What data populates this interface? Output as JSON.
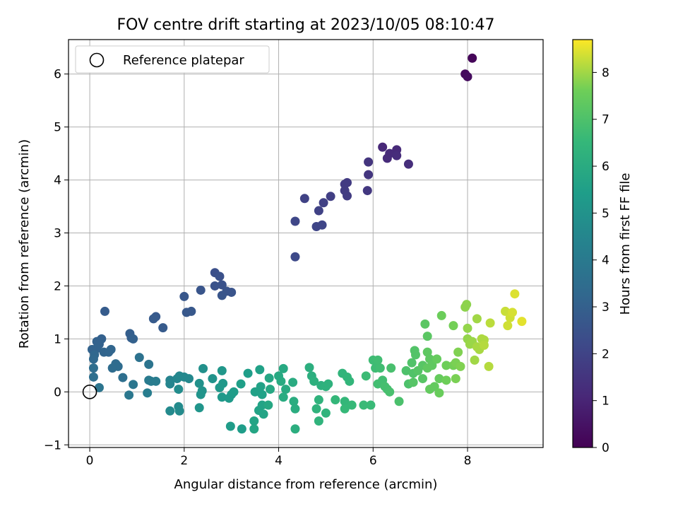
{
  "chart_data": {
    "type": "scatter",
    "title": "FOV centre drift starting at 2023/10/05 08:10:47",
    "xlabel": "Angular distance from reference (arcmin)",
    "ylabel": "Rotation from reference (arcmin)",
    "xlim": [
      -0.45,
      9.6
    ],
    "ylim": [
      -1.05,
      6.65
    ],
    "xticks": [
      0,
      2,
      4,
      6,
      8
    ],
    "yticks": [
      -1,
      0,
      1,
      2,
      3,
      4,
      5,
      6
    ],
    "grid": true,
    "legend": {
      "placement": "top-left",
      "entries": [
        "Reference platepar"
      ]
    },
    "reference_point": {
      "x": 0,
      "y": 0
    },
    "colorbar": {
      "label": "Hours from first FF file",
      "min": 0,
      "max": 8.7,
      "ticks": [
        0,
        1,
        2,
        3,
        4,
        5,
        6,
        7,
        8
      ],
      "colormap": "viridis"
    },
    "series": [
      {
        "points": [
          {
            "x": 8.1,
            "y": 6.3,
            "c": 0.15
          },
          {
            "x": 7.95,
            "y": 6.0,
            "c": 0.25
          },
          {
            "x": 8.0,
            "y": 5.95,
            "c": 0.3
          },
          {
            "x": 6.2,
            "y": 4.62,
            "c": 1.1
          },
          {
            "x": 6.5,
            "y": 4.57,
            "c": 1.15
          },
          {
            "x": 6.35,
            "y": 4.5,
            "c": 1.2
          },
          {
            "x": 6.3,
            "y": 4.41,
            "c": 1.2
          },
          {
            "x": 6.5,
            "y": 4.46,
            "c": 1.25
          },
          {
            "x": 6.75,
            "y": 4.3,
            "c": 1.3
          },
          {
            "x": 5.9,
            "y": 4.34,
            "c": 1.5
          },
          {
            "x": 5.9,
            "y": 4.1,
            "c": 1.55
          },
          {
            "x": 5.88,
            "y": 3.8,
            "c": 1.6
          },
          {
            "x": 5.45,
            "y": 3.95,
            "c": 1.7
          },
          {
            "x": 5.4,
            "y": 3.92,
            "c": 1.72
          },
          {
            "x": 5.4,
            "y": 3.8,
            "c": 1.75
          },
          {
            "x": 5.45,
            "y": 3.7,
            "c": 1.75
          },
          {
            "x": 5.1,
            "y": 3.69,
            "c": 1.85
          },
          {
            "x": 4.95,
            "y": 3.57,
            "c": 1.9
          },
          {
            "x": 4.85,
            "y": 3.42,
            "c": 1.95
          },
          {
            "x": 4.55,
            "y": 3.65,
            "c": 1.95
          },
          {
            "x": 4.8,
            "y": 3.12,
            "c": 2.05
          },
          {
            "x": 4.92,
            "y": 3.15,
            "c": 2.05
          },
          {
            "x": 4.35,
            "y": 3.22,
            "c": 2.1
          },
          {
            "x": 4.35,
            "y": 2.55,
            "c": 2.2
          },
          {
            "x": 2.65,
            "y": 2.25,
            "c": 2.4
          },
          {
            "x": 2.75,
            "y": 2.18,
            "c": 2.45
          },
          {
            "x": 2.8,
            "y": 2.02,
            "c": 2.5
          },
          {
            "x": 2.65,
            "y": 2.0,
            "c": 2.5
          },
          {
            "x": 2.9,
            "y": 1.9,
            "c": 2.55
          },
          {
            "x": 3.0,
            "y": 1.88,
            "c": 2.55
          },
          {
            "x": 2.8,
            "y": 1.82,
            "c": 2.6
          },
          {
            "x": 2.35,
            "y": 1.92,
            "c": 2.6
          },
          {
            "x": 2.0,
            "y": 1.8,
            "c": 2.65
          },
          {
            "x": 2.05,
            "y": 1.5,
            "c": 2.7
          },
          {
            "x": 2.15,
            "y": 1.52,
            "c": 2.7
          },
          {
            "x": 1.4,
            "y": 1.42,
            "c": 2.75
          },
          {
            "x": 1.35,
            "y": 1.38,
            "c": 2.8
          },
          {
            "x": 1.55,
            "y": 1.21,
            "c": 2.8
          },
          {
            "x": 0.32,
            "y": 1.52,
            "c": 2.85
          },
          {
            "x": 0.85,
            "y": 1.1,
            "c": 2.95
          },
          {
            "x": 0.88,
            "y": 1.02,
            "c": 2.95
          },
          {
            "x": 0.92,
            "y": 1.0,
            "c": 3.0
          },
          {
            "x": 0.25,
            "y": 1.0,
            "c": 3.0
          },
          {
            "x": 0.15,
            "y": 0.95,
            "c": 3.05
          },
          {
            "x": 0.2,
            "y": 0.9,
            "c": 3.05
          },
          {
            "x": 0.05,
            "y": 0.8,
            "c": 3.1
          },
          {
            "x": 0.15,
            "y": 0.82,
            "c": 3.1
          },
          {
            "x": 0.3,
            "y": 0.75,
            "c": 3.15
          },
          {
            "x": 0.45,
            "y": 0.8,
            "c": 3.2
          },
          {
            "x": 0.4,
            "y": 0.75,
            "c": 3.2
          },
          {
            "x": 0.1,
            "y": 0.7,
            "c": 3.25
          },
          {
            "x": 0.08,
            "y": 0.62,
            "c": 3.3
          },
          {
            "x": 0.55,
            "y": 0.53,
            "c": 3.4
          },
          {
            "x": 0.6,
            "y": 0.48,
            "c": 3.45
          },
          {
            "x": 0.48,
            "y": 0.45,
            "c": 3.45
          },
          {
            "x": 0.08,
            "y": 0.45,
            "c": 3.5
          },
          {
            "x": 0.7,
            "y": 0.27,
            "c": 3.55
          },
          {
            "x": 0.08,
            "y": 0.28,
            "c": 3.55
          },
          {
            "x": 1.05,
            "y": 0.65,
            "c": 3.7
          },
          {
            "x": 1.25,
            "y": 0.52,
            "c": 3.75
          },
          {
            "x": 0.2,
            "y": 0.08,
            "c": 3.8
          },
          {
            "x": 0.92,
            "y": 0.14,
            "c": 3.85
          },
          {
            "x": 0.83,
            "y": -0.06,
            "c": 3.9
          },
          {
            "x": 1.25,
            "y": 0.22,
            "c": 4.0
          },
          {
            "x": 1.3,
            "y": 0.2,
            "c": 4.05
          },
          {
            "x": 1.4,
            "y": 0.2,
            "c": 4.1
          },
          {
            "x": 1.22,
            "y": -0.02,
            "c": 4.15
          },
          {
            "x": 1.7,
            "y": 0.22,
            "c": 4.4
          },
          {
            "x": 1.7,
            "y": 0.15,
            "c": 4.45
          },
          {
            "x": 1.85,
            "y": 0.25,
            "c": 4.5
          },
          {
            "x": 1.9,
            "y": 0.3,
            "c": 4.55
          },
          {
            "x": 2.0,
            "y": 0.28,
            "c": 4.6
          },
          {
            "x": 2.1,
            "y": 0.25,
            "c": 4.6
          },
          {
            "x": 1.7,
            "y": -0.36,
            "c": 4.65
          },
          {
            "x": 1.88,
            "y": -0.28,
            "c": 4.7
          },
          {
            "x": 1.9,
            "y": -0.36,
            "c": 4.7
          },
          {
            "x": 1.88,
            "y": 0.05,
            "c": 4.75
          },
          {
            "x": 2.4,
            "y": 0.44,
            "c": 4.9
          },
          {
            "x": 2.32,
            "y": 0.16,
            "c": 4.95
          },
          {
            "x": 2.6,
            "y": 0.25,
            "c": 5.0
          },
          {
            "x": 2.38,
            "y": 0.02,
            "c": 5.0
          },
          {
            "x": 2.35,
            "y": -0.05,
            "c": 5.05
          },
          {
            "x": 2.32,
            "y": -0.3,
            "c": 5.1
          },
          {
            "x": 2.8,
            "y": 0.4,
            "c": 5.15
          },
          {
            "x": 2.82,
            "y": 0.16,
            "c": 5.2
          },
          {
            "x": 2.75,
            "y": 0.08,
            "c": 5.2
          },
          {
            "x": 2.8,
            "y": -0.1,
            "c": 5.25
          },
          {
            "x": 2.95,
            "y": -0.12,
            "c": 5.3
          },
          {
            "x": 3.0,
            "y": -0.05,
            "c": 5.3
          },
          {
            "x": 3.05,
            "y": 0.0,
            "c": 5.35
          },
          {
            "x": 2.98,
            "y": -0.65,
            "c": 5.35
          },
          {
            "x": 3.22,
            "y": -0.7,
            "c": 5.4
          },
          {
            "x": 3.35,
            "y": 0.35,
            "c": 5.45
          },
          {
            "x": 3.2,
            "y": 0.15,
            "c": 5.5
          },
          {
            "x": 3.5,
            "y": 0.0,
            "c": 5.55
          },
          {
            "x": 3.6,
            "y": 0.42,
            "c": 5.55
          },
          {
            "x": 3.62,
            "y": 0.1,
            "c": 5.6
          },
          {
            "x": 3.65,
            "y": -0.05,
            "c": 5.6
          },
          {
            "x": 3.58,
            "y": -0.35,
            "c": 5.65
          },
          {
            "x": 3.65,
            "y": -0.25,
            "c": 5.65
          },
          {
            "x": 3.68,
            "y": -0.42,
            "c": 5.7
          },
          {
            "x": 3.48,
            "y": -0.55,
            "c": 5.7
          },
          {
            "x": 3.48,
            "y": -0.7,
            "c": 5.75
          },
          {
            "x": 3.8,
            "y": 0.26,
            "c": 5.8
          },
          {
            "x": 3.82,
            "y": 0.05,
            "c": 5.85
          },
          {
            "x": 3.78,
            "y": -0.25,
            "c": 5.85
          },
          {
            "x": 4.0,
            "y": 0.3,
            "c": 5.9
          },
          {
            "x": 4.1,
            "y": 0.44,
            "c": 5.9
          },
          {
            "x": 4.05,
            "y": 0.2,
            "c": 5.95
          },
          {
            "x": 4.15,
            "y": 0.05,
            "c": 5.95
          },
          {
            "x": 4.1,
            "y": -0.1,
            "c": 6.0
          },
          {
            "x": 4.3,
            "y": 0.18,
            "c": 6.0
          },
          {
            "x": 4.32,
            "y": -0.18,
            "c": 6.05
          },
          {
            "x": 4.35,
            "y": -0.32,
            "c": 6.05
          },
          {
            "x": 4.35,
            "y": -0.7,
            "c": 6.1
          },
          {
            "x": 4.65,
            "y": 0.46,
            "c": 6.15
          },
          {
            "x": 4.7,
            "y": 0.3,
            "c": 6.15
          },
          {
            "x": 4.75,
            "y": 0.2,
            "c": 6.2
          },
          {
            "x": 4.9,
            "y": 0.12,
            "c": 6.2
          },
          {
            "x": 5.0,
            "y": 0.1,
            "c": 6.25
          },
          {
            "x": 5.05,
            "y": 0.15,
            "c": 6.25
          },
          {
            "x": 4.85,
            "y": -0.15,
            "c": 6.3
          },
          {
            "x": 4.8,
            "y": -0.32,
            "c": 6.3
          },
          {
            "x": 4.85,
            "y": -0.55,
            "c": 6.35
          },
          {
            "x": 5.0,
            "y": -0.4,
            "c": 6.35
          },
          {
            "x": 5.35,
            "y": 0.35,
            "c": 6.4
          },
          {
            "x": 5.45,
            "y": 0.28,
            "c": 6.45
          },
          {
            "x": 5.5,
            "y": 0.2,
            "c": 6.45
          },
          {
            "x": 5.2,
            "y": -0.15,
            "c": 6.5
          },
          {
            "x": 5.4,
            "y": -0.18,
            "c": 6.5
          },
          {
            "x": 5.4,
            "y": -0.32,
            "c": 6.55
          },
          {
            "x": 5.55,
            "y": -0.25,
            "c": 6.55
          },
          {
            "x": 5.8,
            "y": -0.25,
            "c": 6.6
          },
          {
            "x": 5.95,
            "y": -0.25,
            "c": 6.6
          },
          {
            "x": 5.85,
            "y": 0.3,
            "c": 6.65
          },
          {
            "x": 6.0,
            "y": 0.6,
            "c": 6.7
          },
          {
            "x": 6.05,
            "y": 0.45,
            "c": 6.7
          },
          {
            "x": 6.1,
            "y": 0.6,
            "c": 6.75
          },
          {
            "x": 6.15,
            "y": 0.45,
            "c": 6.75
          },
          {
            "x": 6.1,
            "y": 0.15,
            "c": 6.8
          },
          {
            "x": 6.2,
            "y": 0.22,
            "c": 6.8
          },
          {
            "x": 6.25,
            "y": 0.1,
            "c": 6.85
          },
          {
            "x": 6.3,
            "y": 0.05,
            "c": 6.85
          },
          {
            "x": 6.35,
            "y": 0.0,
            "c": 6.9
          },
          {
            "x": 6.38,
            "y": 0.45,
            "c": 6.9
          },
          {
            "x": 6.55,
            "y": -0.18,
            "c": 6.95
          },
          {
            "x": 6.7,
            "y": 0.4,
            "c": 7.0
          },
          {
            "x": 6.75,
            "y": 0.15,
            "c": 7.0
          },
          {
            "x": 6.82,
            "y": 0.55,
            "c": 7.05
          },
          {
            "x": 6.85,
            "y": 0.35,
            "c": 7.05
          },
          {
            "x": 6.88,
            "y": 0.78,
            "c": 7.1
          },
          {
            "x": 6.9,
            "y": 0.7,
            "c": 7.1
          },
          {
            "x": 6.95,
            "y": 0.4,
            "c": 7.15
          },
          {
            "x": 6.85,
            "y": 0.18,
            "c": 7.15
          },
          {
            "x": 7.05,
            "y": 0.5,
            "c": 7.2
          },
          {
            "x": 7.05,
            "y": 0.25,
            "c": 7.2
          },
          {
            "x": 7.1,
            "y": 1.28,
            "c": 7.25
          },
          {
            "x": 7.15,
            "y": 1.05,
            "c": 7.25
          },
          {
            "x": 7.15,
            "y": 0.75,
            "c": 7.3
          },
          {
            "x": 7.2,
            "y": 0.62,
            "c": 7.3
          },
          {
            "x": 7.15,
            "y": 0.45,
            "c": 7.35
          },
          {
            "x": 7.25,
            "y": 0.5,
            "c": 7.35
          },
          {
            "x": 7.2,
            "y": 0.05,
            "c": 7.4
          },
          {
            "x": 7.3,
            "y": 0.1,
            "c": 7.4
          },
          {
            "x": 7.35,
            "y": 0.62,
            "c": 7.45
          },
          {
            "x": 7.4,
            "y": 0.25,
            "c": 7.45
          },
          {
            "x": 7.4,
            "y": -0.02,
            "c": 7.5
          },
          {
            "x": 7.45,
            "y": 1.44,
            "c": 7.55
          },
          {
            "x": 7.55,
            "y": 0.5,
            "c": 7.6
          },
          {
            "x": 7.55,
            "y": 0.22,
            "c": 7.6
          },
          {
            "x": 7.7,
            "y": 1.25,
            "c": 7.65
          },
          {
            "x": 7.7,
            "y": 0.5,
            "c": 7.65
          },
          {
            "x": 7.75,
            "y": 0.55,
            "c": 7.7
          },
          {
            "x": 7.75,
            "y": 0.25,
            "c": 7.7
          },
          {
            "x": 7.8,
            "y": 0.75,
            "c": 7.75
          },
          {
            "x": 7.85,
            "y": 0.48,
            "c": 7.75
          },
          {
            "x": 7.95,
            "y": 1.6,
            "c": 7.85
          },
          {
            "x": 7.98,
            "y": 1.65,
            "c": 7.85
          },
          {
            "x": 8.0,
            "y": 1.2,
            "c": 7.9
          },
          {
            "x": 8.0,
            "y": 1.0,
            "c": 7.9
          },
          {
            "x": 8.05,
            "y": 0.9,
            "c": 7.95
          },
          {
            "x": 8.1,
            "y": 0.95,
            "c": 7.95
          },
          {
            "x": 8.15,
            "y": 0.6,
            "c": 8.0
          },
          {
            "x": 8.2,
            "y": 1.38,
            "c": 8.0
          },
          {
            "x": 8.2,
            "y": 0.85,
            "c": 8.05
          },
          {
            "x": 8.25,
            "y": 0.8,
            "c": 8.05
          },
          {
            "x": 8.3,
            "y": 1.0,
            "c": 8.1
          },
          {
            "x": 8.35,
            "y": 0.98,
            "c": 8.1
          },
          {
            "x": 8.35,
            "y": 0.88,
            "c": 8.15
          },
          {
            "x": 8.45,
            "y": 0.48,
            "c": 8.15
          },
          {
            "x": 8.48,
            "y": 1.3,
            "c": 8.2
          },
          {
            "x": 8.8,
            "y": 1.52,
            "c": 8.3
          },
          {
            "x": 8.85,
            "y": 1.25,
            "c": 8.35
          },
          {
            "x": 8.9,
            "y": 1.4,
            "c": 8.35
          },
          {
            "x": 8.95,
            "y": 1.5,
            "c": 8.4
          },
          {
            "x": 9.0,
            "y": 1.85,
            "c": 8.45
          },
          {
            "x": 9.15,
            "y": 1.33,
            "c": 8.5
          }
        ]
      }
    ]
  }
}
